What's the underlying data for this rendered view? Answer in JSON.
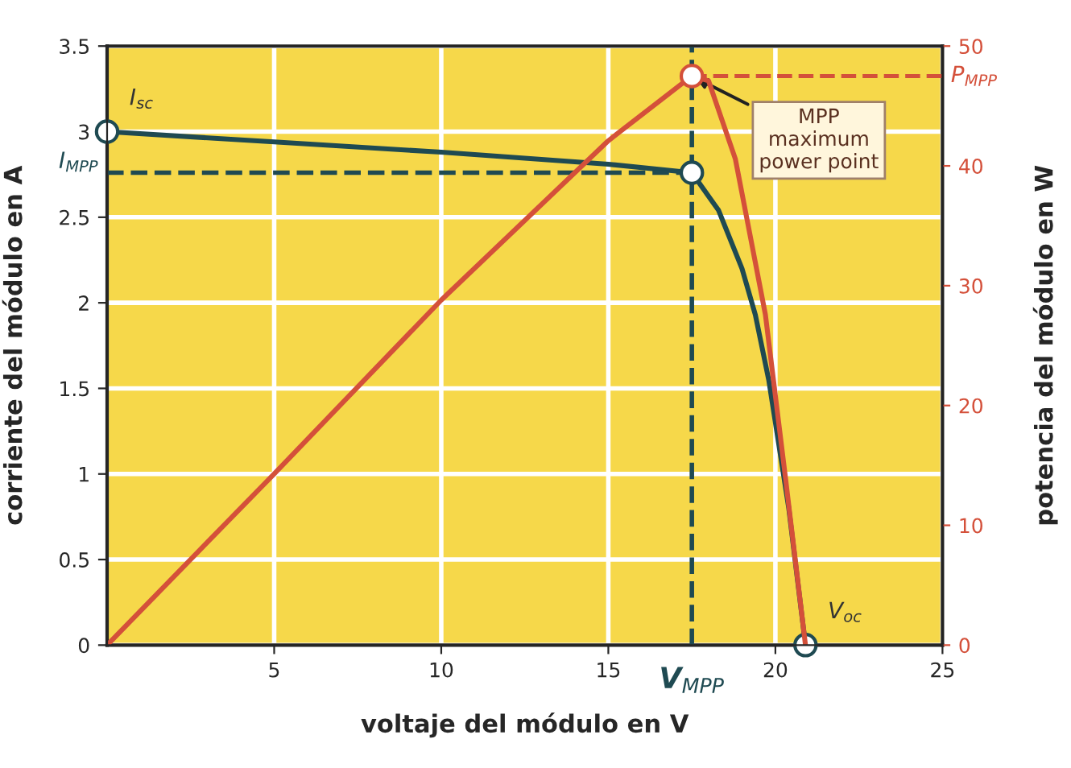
{
  "chart_data": {
    "type": "line",
    "xlabel": "voltaje del módulo en V",
    "ylabel": "corriente del módulo en A",
    "y2label": "potencia del módulo en W",
    "xlim": [
      0,
      25
    ],
    "xticks": [
      5,
      10,
      15,
      20,
      25
    ],
    "ylim": [
      0,
      3.5
    ],
    "yticks": [
      0,
      0.5,
      1,
      1.5,
      2,
      2.5,
      3,
      3.5
    ],
    "y2lim": [
      0,
      50
    ],
    "y2ticks": [
      0,
      10,
      20,
      30,
      40,
      50
    ],
    "grid": true,
    "marker": "none",
    "line_style": "solid",
    "series": [
      {
        "color": "#1f4a52",
        "x": [
          0,
          5,
          10,
          15,
          17.5,
          18.3,
          19.0,
          19.4,
          19.8,
          20.4,
          20.9
        ],
        "values": [
          3.0,
          2.94,
          2.88,
          2.81,
          2.76,
          2.54,
          2.2,
          1.93,
          1.55,
          0.8,
          0
        ]
      },
      {
        "axis": "y2",
        "color": "#d4503a",
        "x": [
          0,
          5,
          10,
          15,
          17.5,
          18.0,
          18.8,
          19.7,
          20.3,
          20.9
        ],
        "values": [
          0,
          14.3,
          28.8,
          42.1,
          47.5,
          47.1,
          40.6,
          27.6,
          14,
          0
        ]
      },
      {
        "type": "scatter",
        "marker": "circle",
        "color": "#1f4a52",
        "x": [
          0,
          17.5,
          20.9
        ],
        "values": [
          3.0,
          2.76,
          0
        ]
      },
      {
        "type": "scatter",
        "marker": "circle",
        "axis": "y2",
        "color": "#d4503a",
        "x": [
          17.5
        ],
        "values": [
          47.5
        ]
      }
    ],
    "ref_lines": [
      {
        "axis": "y",
        "value": 2.76,
        "label": "I$_{MPP}$",
        "color": "#1f4a52",
        "line_style": "dashed"
      },
      {
        "axis": "x",
        "value": 17.5,
        "label": "V$_{MPP}$",
        "color": "#1f4a52",
        "line_style": "dashed"
      },
      {
        "axis": "y2",
        "value": 47.5,
        "label": "P$_{MPP}$",
        "color": "#d4503a",
        "line_style": "dashed"
      }
    ],
    "annotations": [
      {
        "text": "I$_{sc}$",
        "x": 0,
        "y": 3.0
      },
      {
        "text": "V$_{oc}$",
        "x": 20.9,
        "y": 0
      },
      {
        "text": "MPP\nmaximum\npower point",
        "x": 17.5,
        "y": 3.325
      }
    ]
  }
}
